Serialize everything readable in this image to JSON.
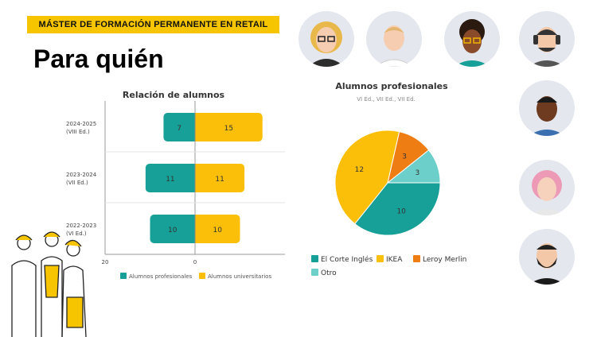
{
  "banner": "MÁSTER DE FORMACIÓN PERMANENTE EN RETAIL",
  "title": "Para quién",
  "chart_data": [
    {
      "type": "bar",
      "orientation": "horizontal-diverging",
      "title": "Relación de alumnos",
      "categories": [
        "2024-2025\n(VIII Ed.)",
        "2023-2024\n(VII Ed.)",
        "2022-2023\n(VI Ed.)"
      ],
      "category_lines": [
        [
          "2024-2025",
          "(VIII Ed.)"
        ],
        [
          "2023-2024",
          "(VII Ed.)"
        ],
        [
          "2022-2023",
          "(VI Ed.)"
        ]
      ],
      "series": [
        {
          "name": "Alumnos profesionales",
          "values": [
            7,
            11,
            10
          ],
          "color": "#17a098",
          "side": "left"
        },
        {
          "name": "Alumnos universitarios",
          "values": [
            15,
            11,
            10
          ],
          "color": "#fbbf0a",
          "side": "right"
        }
      ],
      "xticks": [
        "20",
        "0"
      ],
      "xlim": [
        -20,
        20
      ],
      "grid": true,
      "legend": "bottom"
    },
    {
      "type": "pie",
      "title": "Alumnos profesionales",
      "subtitle": "VI Ed., VII Ed., VII Ed.",
      "slices": [
        {
          "label": "El Corte Inglés",
          "value": 10,
          "color": "#17a098"
        },
        {
          "label": "IKEA",
          "value": 12,
          "color": "#fbbf0a"
        },
        {
          "label": "Leroy Merlin",
          "value": 3,
          "color": "#ee7d14"
        },
        {
          "label": "Otro",
          "value": 3,
          "color": "#6ccfc9"
        }
      ],
      "legend": "bottom"
    }
  ]
}
